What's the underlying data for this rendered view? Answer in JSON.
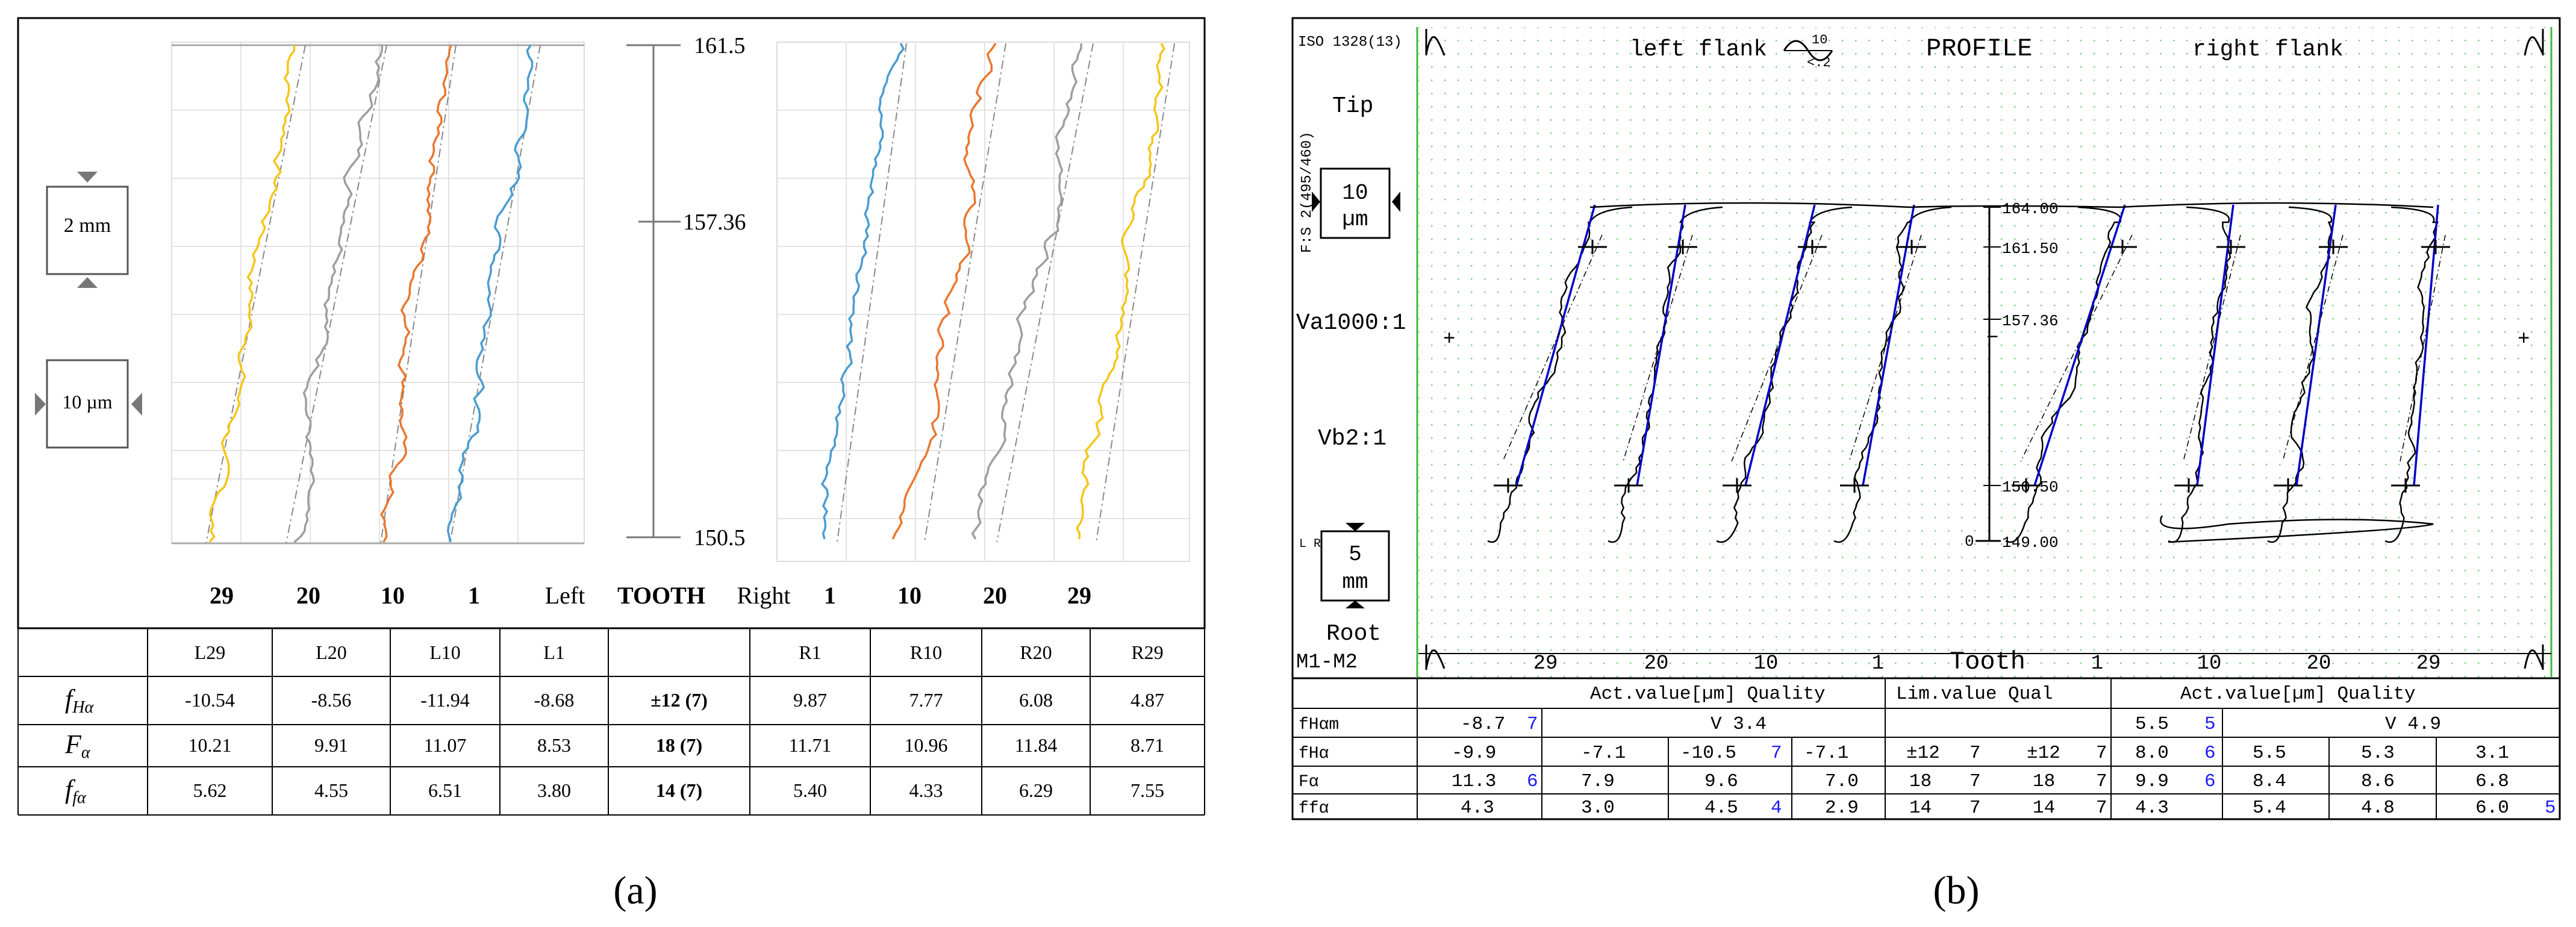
{
  "panel_a": {
    "caption": "(a)",
    "scale_box_1": "2 mm",
    "scale_box_2": "10 µm",
    "axis_top": "161.5",
    "axis_mid": "157.36",
    "axis_bottom": "150.5",
    "tooth_row": {
      "left_nums": [
        "29",
        "20",
        "10",
        "1"
      ],
      "left": "Left",
      "tooth": "TOOTH",
      "right": "Right",
      "right_nums": [
        "1",
        "10",
        "20",
        "29"
      ]
    },
    "table_header": [
      "",
      "L29",
      "L20",
      "L10",
      "L1",
      "",
      "R1",
      "R10",
      "R20",
      "R29"
    ],
    "table_rows": [
      {
        "label_main": "f",
        "label_sub": "Hα",
        "values": [
          "-10.54",
          "-8.56",
          "-11.94",
          "-8.68",
          "±12 (7)",
          "9.87",
          "7.77",
          "6.08",
          "4.87"
        ]
      },
      {
        "label_main": "F",
        "label_sub": "α",
        "values": [
          "10.21",
          "9.91",
          "11.07",
          "8.53",
          "18 (7)",
          "11.71",
          "10.96",
          "11.84",
          "8.71"
        ]
      },
      {
        "label_main": "f",
        "label_sub": "fα",
        "values": [
          "5.62",
          "4.55",
          "6.51",
          "3.80",
          "14 (7)",
          "5.40",
          "4.33",
          "6.29",
          "7.55"
        ]
      }
    ],
    "trace_colors": {
      "t29": "#f5c518",
      "t20": "#9e9e9e",
      "t10": "#e8772e",
      "t1": "#4a9bd1"
    }
  },
  "panel_b": {
    "caption": "(b)",
    "iso": "ISO 1328(13)",
    "left_flank": "left flank",
    "filter_top": "10",
    "filter_bottom": "<.2",
    "profile": "PROFILE",
    "right_flank": "right flank",
    "vertical_label": "F:S 2(495/460)",
    "tip": "Tip",
    "scale_10": "10",
    "scale_um": "µm",
    "va": "Va1000:1",
    "vb": "Vb2:1",
    "l_r0": "L R0",
    "scale_5": "5",
    "scale_mm": "mm",
    "root": "Root",
    "plus": "+",
    "minus": "−",
    "axis_labels": [
      "164.00",
      "161.50",
      "157.36",
      "150.50",
      "149.00"
    ],
    "axis_zero": "0",
    "m1m2": "M1-M2",
    "tooth_word": "Tooth",
    "left_nums": [
      "29",
      "20",
      "10",
      "1"
    ],
    "right_nums": [
      "1",
      "10",
      "20",
      "29"
    ],
    "table_head": {
      "act_left": "Act.value[µm] Quality",
      "lim": "Lim.value Qual",
      "act_right": "Act.value[µm] Quality"
    },
    "rows": [
      {
        "label": "fHαm",
        "cells": [
          "-8.7",
          "7",
          "V  3.4",
          "",
          "5.5",
          "5",
          "V  4.9"
        ]
      },
      {
        "label": "fHα",
        "cells": [
          "-9.9",
          "",
          "-7.1",
          "-10.5",
          "7",
          "-7.1",
          "±12",
          "7",
          "±12",
          "7",
          "8.0",
          "6",
          "5.5",
          "5.3",
          "3.1"
        ]
      },
      {
        "label": "Fα",
        "cells": [
          "11.3",
          "6",
          "7.9",
          "9.6",
          "7.0",
          "18",
          "7",
          "18",
          "7",
          "9.9",
          "6",
          "8.4",
          "8.6",
          "6.8"
        ]
      },
      {
        "label": "ffα",
        "cells": [
          "4.3",
          "3.0",
          "4.5",
          "4",
          "2.9",
          "14",
          "7",
          "14",
          "7",
          "4.3",
          "5.4",
          "4.8",
          "6.0",
          "5"
        ]
      }
    ],
    "quality_color": "#1a1aff",
    "fit_color": "#0000c8",
    "grid_color": "#3dbb3d"
  }
}
